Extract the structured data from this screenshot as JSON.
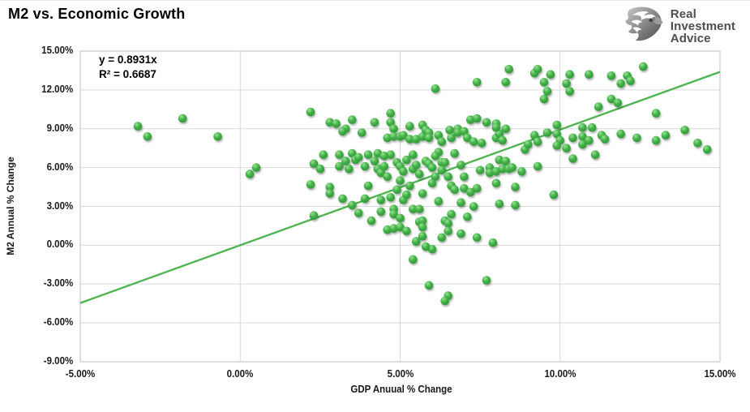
{
  "header": {
    "title": "M2 vs. Economic Growth"
  },
  "logo": {
    "line1": "Real",
    "line2": "Investment",
    "line3": "Advice",
    "icon": "eagle-crest-icon"
  },
  "chart_data": {
    "type": "scatter",
    "title": "M2 vs. Economic Growth",
    "xlabel": "GDP Anuual % Change",
    "ylabel": "M2 Annual % Change",
    "xlim": [
      -5,
      15
    ],
    "ylim": [
      -9,
      15
    ],
    "grid": true,
    "legend_position": "none",
    "annotations": {
      "equation": "y = 0.8931x",
      "r_squared": "R² = 0.6687"
    },
    "x_ticks": [
      {
        "value": -5,
        "label": "-5.00%"
      },
      {
        "value": 0,
        "label": "0.00%"
      },
      {
        "value": 5,
        "label": "5.00%"
      },
      {
        "value": 10,
        "label": "10.00%"
      },
      {
        "value": 15,
        "label": "15.00%"
      }
    ],
    "y_ticks": [
      {
        "value": 15,
        "label": "15.00%"
      },
      {
        "value": 12,
        "label": "12.00%"
      },
      {
        "value": 9,
        "label": "9.00%"
      },
      {
        "value": 6,
        "label": "6.00%"
      },
      {
        "value": 3,
        "label": "3.00%"
      },
      {
        "value": 0,
        "label": "0.00%"
      },
      {
        "value": -3,
        "label": "-3.00%"
      },
      {
        "value": -6,
        "label": "-6.00%"
      },
      {
        "value": -9,
        "label": "-9.00%"
      }
    ],
    "trendline": {
      "slope": 0.8931,
      "intercept": 0,
      "color": "#4eb551",
      "width": 2.4
    },
    "colors": {
      "point_base": "#3fae49",
      "point_highlight": "#97e393",
      "point_dark": "#27902f",
      "gridline": "#d9d9d9",
      "plot_border": "#bfbfbf"
    },
    "points": [
      [
        -3.2,
        9.2
      ],
      [
        -2.9,
        8.4
      ],
      [
        -1.8,
        9.8
      ],
      [
        -0.7,
        8.4
      ],
      [
        0.3,
        5.5
      ],
      [
        0.5,
        6.0
      ],
      [
        2.2,
        10.3
      ],
      [
        2.8,
        9.5
      ],
      [
        3.0,
        9.4
      ],
      [
        3.5,
        9.7
      ],
      [
        3.3,
        9.0
      ],
      [
        3.2,
        8.8
      ],
      [
        4.2,
        9.5
      ],
      [
        4.7,
        10.2
      ],
      [
        4.7,
        9.5
      ],
      [
        4.8,
        9.0
      ],
      [
        3.8,
        8.7
      ],
      [
        4.6,
        8.3
      ],
      [
        4.8,
        8.4
      ],
      [
        5.0,
        8.4
      ],
      [
        5.1,
        8.5
      ],
      [
        5.3,
        9.2
      ],
      [
        5.3,
        8.2
      ],
      [
        5.5,
        8.2
      ],
      [
        5.7,
        9.3
      ],
      [
        5.7,
        8.4
      ],
      [
        5.8,
        8.9
      ],
      [
        5.9,
        8.7
      ],
      [
        5.9,
        8.3
      ],
      [
        6.2,
        8.5
      ],
      [
        6.3,
        8.0
      ],
      [
        6.55,
        8.9
      ],
      [
        6.6,
        8.3
      ],
      [
        6.8,
        9.0
      ],
      [
        6.8,
        8.7
      ],
      [
        7.0,
        8.8
      ],
      [
        7.1,
        8.3
      ],
      [
        7.2,
        9.7
      ],
      [
        7.3,
        8.0
      ],
      [
        7.55,
        7.9
      ],
      [
        7.4,
        9.8
      ],
      [
        7.7,
        9.5
      ],
      [
        8.0,
        9.4
      ],
      [
        8.0,
        8.3
      ],
      [
        8.1,
        8.6
      ],
      [
        8.2,
        8.1
      ],
      [
        6.1,
        12.1
      ],
      [
        7.4,
        12.6
      ],
      [
        2.3,
        6.3
      ],
      [
        2.6,
        7.0
      ],
      [
        3.1,
        7.0
      ],
      [
        3.3,
        6.5
      ],
      [
        3.5,
        7.1
      ],
      [
        3.6,
        6.6
      ],
      [
        3.7,
        6.8
      ],
      [
        3.9,
        6.1
      ],
      [
        4.0,
        7.0
      ],
      [
        4.3,
        7.1
      ],
      [
        4.3,
        5.9
      ],
      [
        4.4,
        5.6
      ],
      [
        4.5,
        6.1
      ],
      [
        4.6,
        5.3
      ],
      [
        4.7,
        7.0
      ],
      [
        4.9,
        6.4
      ],
      [
        5.0,
        6.1
      ],
      [
        5.0,
        5.0
      ],
      [
        5.4,
        7.0
      ],
      [
        5.4,
        5.9
      ],
      [
        5.6,
        5.5
      ],
      [
        5.7,
        4.0
      ],
      [
        5.8,
        6.5
      ],
      [
        5.9,
        6.3
      ],
      [
        6.0,
        4.8
      ],
      [
        6.1,
        5.3
      ],
      [
        6.2,
        7.2
      ],
      [
        6.3,
        6.4
      ],
      [
        6.3,
        5.8
      ],
      [
        6.4,
        6.4
      ],
      [
        6.5,
        5.3
      ],
      [
        6.6,
        4.6
      ],
      [
        6.7,
        4.3
      ],
      [
        7.0,
        5.3
      ],
      [
        7.0,
        4.4
      ],
      [
        7.2,
        4.1
      ],
      [
        7.4,
        4.4
      ],
      [
        7.5,
        5.8
      ],
      [
        7.8,
        6.0
      ],
      [
        7.8,
        5.6
      ],
      [
        8.0,
        5.7
      ],
      [
        8.1,
        6.6
      ],
      [
        4.2,
        6.5
      ],
      [
        4.5,
        6.9
      ],
      [
        5.2,
        6.6
      ],
      [
        5.1,
        5.7
      ],
      [
        5.5,
        6.2
      ],
      [
        5.3,
        4.6
      ],
      [
        6.0,
        6.0
      ],
      [
        6.1,
        6.9
      ],
      [
        6.7,
        7.1
      ],
      [
        6.9,
        6.2
      ],
      [
        3.4,
        5.9
      ],
      [
        3.1,
        6.1
      ],
      [
        2.5,
        5.9
      ],
      [
        2.2,
        4.7
      ],
      [
        2.8,
        4.5
      ],
      [
        2.8,
        4.0
      ],
      [
        3.2,
        3.6
      ],
      [
        3.5,
        3.1
      ],
      [
        3.9,
        3.6
      ],
      [
        4.0,
        4.6
      ],
      [
        4.4,
        3.5
      ],
      [
        4.7,
        3.7
      ],
      [
        5.1,
        3.5
      ],
      [
        4.8,
        2.8
      ],
      [
        4.8,
        2.4
      ],
      [
        5.0,
        2.1
      ],
      [
        4.1,
        1.9
      ],
      [
        4.6,
        1.2
      ],
      [
        4.8,
        1.3
      ],
      [
        5.0,
        1.4
      ],
      [
        5.2,
        1.1
      ],
      [
        5.4,
        2.8
      ],
      [
        5.6,
        2.8
      ],
      [
        5.6,
        1.8
      ],
      [
        5.7,
        1.9
      ],
      [
        5.7,
        1.4
      ],
      [
        5.7,
        0.7
      ],
      [
        6.3,
        0.6
      ],
      [
        6.4,
        1.9
      ],
      [
        6.5,
        1.7
      ],
      [
        6.5,
        1.1
      ],
      [
        7.9,
        0.2
      ],
      [
        2.3,
        2.3
      ],
      [
        4.9,
        4.3
      ],
      [
        5.2,
        3.9
      ],
      [
        6.9,
        3.3
      ],
      [
        7.3,
        3.0
      ],
      [
        6.2,
        3.4
      ],
      [
        6.6,
        2.4
      ],
      [
        7.1,
        2.2
      ],
      [
        6.9,
        0.9
      ],
      [
        7.4,
        0.6
      ],
      [
        5.5,
        0.3
      ],
      [
        6.0,
        -0.3
      ],
      [
        5.8,
        -0.1
      ],
      [
        8.6,
        3.1
      ],
      [
        3.7,
        2.5
      ],
      [
        4.4,
        2.6
      ],
      [
        5.4,
        -1.1
      ],
      [
        5.9,
        -3.1
      ],
      [
        6.5,
        -3.9
      ],
      [
        6.4,
        -4.3
      ],
      [
        7.7,
        -2.7
      ],
      [
        8.3,
        12.6
      ],
      [
        8.4,
        13.6
      ],
      [
        9.2,
        13.3
      ],
      [
        9.3,
        13.6
      ],
      [
        9.5,
        12.6
      ],
      [
        9.6,
        11.9
      ],
      [
        9.5,
        11.3
      ],
      [
        9.7,
        13.2
      ],
      [
        10.2,
        12.5
      ],
      [
        10.3,
        13.2
      ],
      [
        10.3,
        11.9
      ],
      [
        10.9,
        13.2
      ],
      [
        11.2,
        10.7
      ],
      [
        11.6,
        13.1
      ],
      [
        11.6,
        11.3
      ],
      [
        11.8,
        11.0
      ],
      [
        11.9,
        12.5
      ],
      [
        12.1,
        13.1
      ],
      [
        12.2,
        12.7
      ],
      [
        12.6,
        13.8
      ],
      [
        13.0,
        10.2
      ],
      [
        8.0,
        9.1
      ],
      [
        8.3,
        9.0
      ],
      [
        8.9,
        7.4
      ],
      [
        9.0,
        7.8
      ],
      [
        9.2,
        8.5
      ],
      [
        9.3,
        8.0
      ],
      [
        9.6,
        8.7
      ],
      [
        9.9,
        9.3
      ],
      [
        9.9,
        8.6
      ],
      [
        10.0,
        8.1
      ],
      [
        9.9,
        7.7
      ],
      [
        10.2,
        7.5
      ],
      [
        10.4,
        8.3
      ],
      [
        10.7,
        8.4
      ],
      [
        10.7,
        7.8
      ],
      [
        10.9,
        8.1
      ],
      [
        10.7,
        9.1
      ],
      [
        11.0,
        9.1
      ],
      [
        11.3,
        8.5
      ],
      [
        11.4,
        8.2
      ],
      [
        11.9,
        8.6
      ],
      [
        12.4,
        8.3
      ],
      [
        13.0,
        8.1
      ],
      [
        13.3,
        8.5
      ],
      [
        13.9,
        8.9
      ],
      [
        14.3,
        7.9
      ],
      [
        14.6,
        7.4
      ],
      [
        8.3,
        6.5
      ],
      [
        8.2,
        5.9
      ],
      [
        8.4,
        5.9
      ],
      [
        8.5,
        6.0
      ],
      [
        8.8,
        5.7
      ],
      [
        9.3,
        6.1
      ],
      [
        8.6,
        4.5
      ],
      [
        8.0,
        4.8
      ],
      [
        9.8,
        3.9
      ],
      [
        8.1,
        3.2
      ],
      [
        10.4,
        6.7
      ],
      [
        11.1,
        7.0
      ]
    ]
  }
}
